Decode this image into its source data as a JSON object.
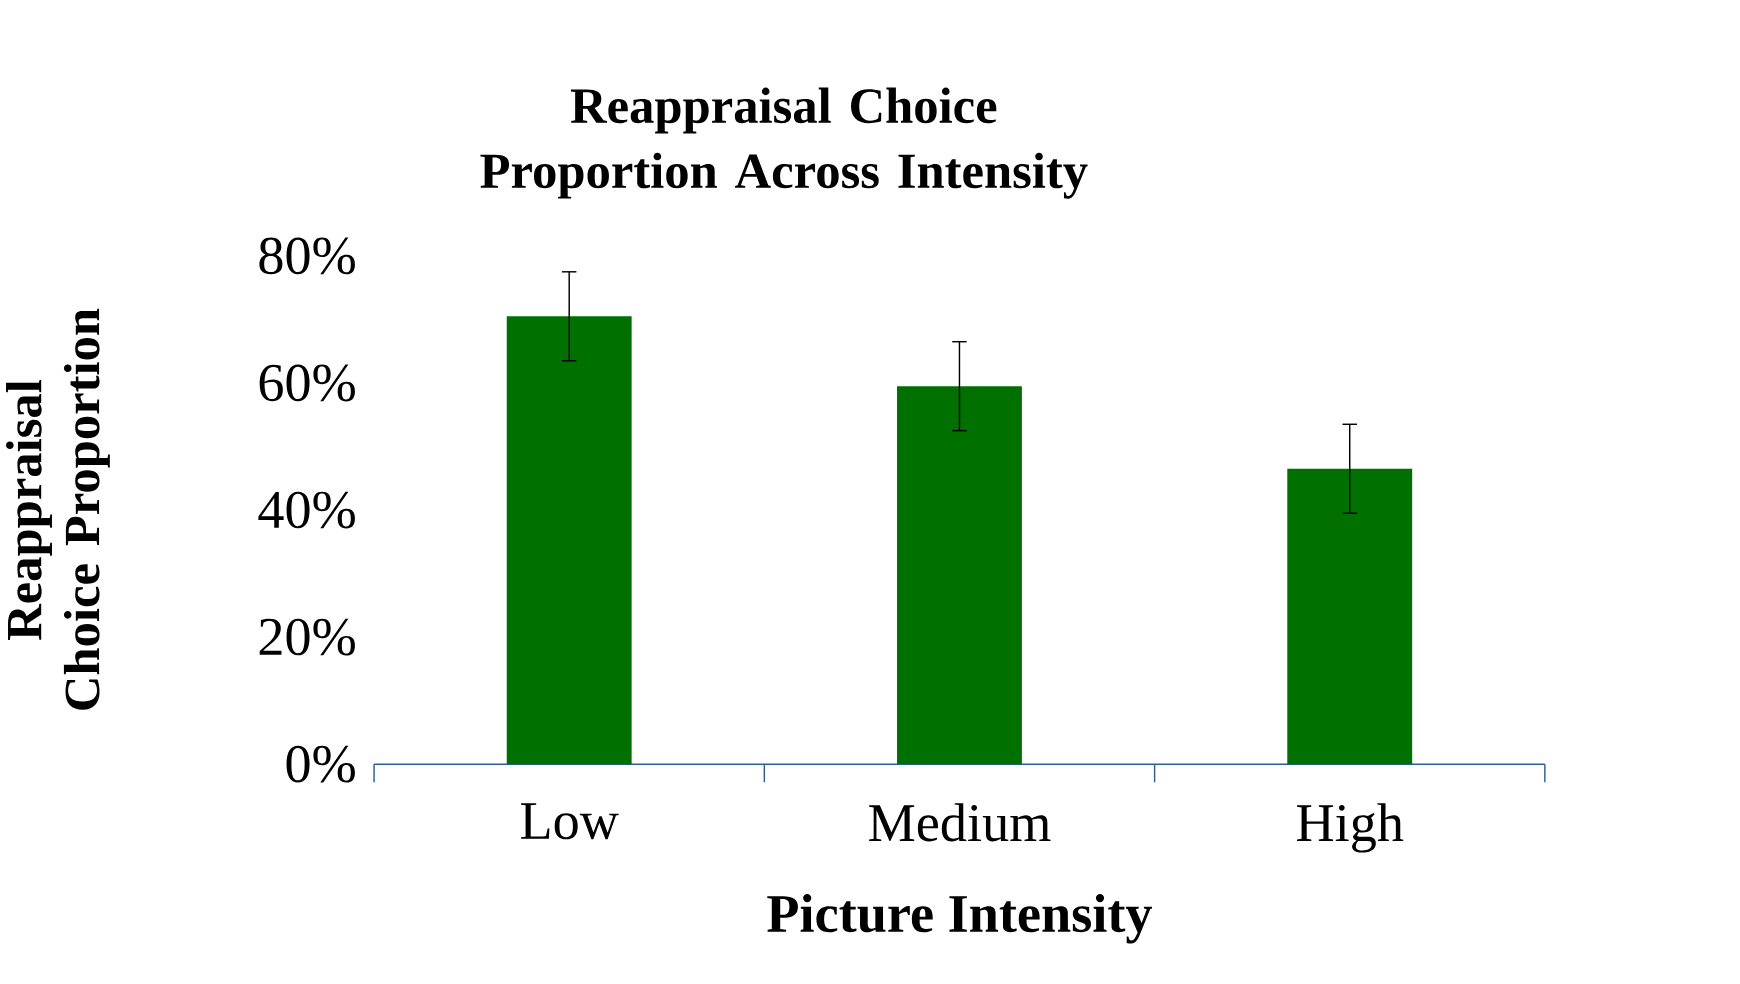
{
  "chart_data": {
    "type": "bar",
    "title": "Reappraisal Choice Proportion Across Intensity",
    "xlabel": "Picture Intensity",
    "ylabel": "Reappraisal Choice Proportion",
    "categories": [
      "Low",
      "Medium",
      "High"
    ],
    "values": [
      70.5,
      59.5,
      46.5
    ],
    "errors": [
      7,
      7,
      7
    ],
    "color": "#007000",
    "ylim": [
      0,
      80
    ],
    "yticks": [
      {
        "value": 0,
        "label": "0%"
      },
      {
        "value": 20,
        "label": "20%"
      },
      {
        "value": 40,
        "label": "40%"
      },
      {
        "value": 60,
        "label": "60%"
      },
      {
        "value": 80,
        "label": "80%"
      }
    ],
    "grid": false
  }
}
